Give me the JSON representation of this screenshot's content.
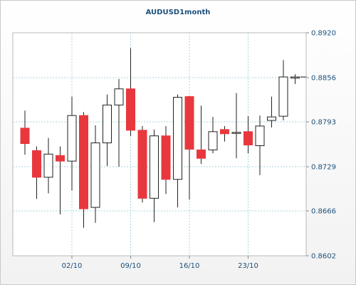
{
  "chart_data": {
    "type": "candlestick",
    "title": "AUDUSD1month",
    "ylim": [
      0.8602,
      0.892
    ],
    "y_ticks": [
      "0.8920",
      "0.8856",
      "0.8793",
      "0.8729",
      "0.8666",
      "0.8602"
    ],
    "x_ticks": [
      {
        "label": "02/10",
        "index": 4
      },
      {
        "label": "09/10",
        "index": 9
      },
      {
        "label": "16/10",
        "index": 14
      },
      {
        "label": "23/10",
        "index": 19
      }
    ],
    "colors": {
      "up": "#ffffff",
      "down": "#e8383d",
      "wick": "#222222",
      "grid": "#a8d4dc",
      "axis": "#1a4f7a"
    },
    "current_price": 0.8857,
    "candles": [
      {
        "open": 0.8784,
        "high": 0.8809,
        "low": 0.8746,
        "close": 0.8762
      },
      {
        "open": 0.8752,
        "high": 0.8758,
        "low": 0.8683,
        "close": 0.8714
      },
      {
        "open": 0.8714,
        "high": 0.877,
        "low": 0.8691,
        "close": 0.8747
      },
      {
        "open": 0.8745,
        "high": 0.8758,
        "low": 0.8661,
        "close": 0.8737
      },
      {
        "open": 0.8737,
        "high": 0.8829,
        "low": 0.8695,
        "close": 0.8802
      },
      {
        "open": 0.8802,
        "high": 0.8807,
        "low": 0.8642,
        "close": 0.8669
      },
      {
        "open": 0.8671,
        "high": 0.8788,
        "low": 0.8649,
        "close": 0.8763
      },
      {
        "open": 0.8763,
        "high": 0.8832,
        "low": 0.873,
        "close": 0.8817
      },
      {
        "open": 0.8817,
        "high": 0.8854,
        "low": 0.8729,
        "close": 0.884
      },
      {
        "open": 0.884,
        "high": 0.8898,
        "low": 0.8773,
        "close": 0.8781
      },
      {
        "open": 0.8781,
        "high": 0.8787,
        "low": 0.8678,
        "close": 0.8684
      },
      {
        "open": 0.8684,
        "high": 0.8782,
        "low": 0.865,
        "close": 0.8773
      },
      {
        "open": 0.8773,
        "high": 0.8787,
        "low": 0.869,
        "close": 0.8711
      },
      {
        "open": 0.8711,
        "high": 0.8832,
        "low": 0.8671,
        "close": 0.8828
      },
      {
        "open": 0.8829,
        "high": 0.883,
        "low": 0.8682,
        "close": 0.8754
      },
      {
        "open": 0.8753,
        "high": 0.8816,
        "low": 0.8733,
        "close": 0.8741
      },
      {
        "open": 0.8753,
        "high": 0.88,
        "low": 0.8748,
        "close": 0.8779
      },
      {
        "open": 0.8782,
        "high": 0.8787,
        "low": 0.8765,
        "close": 0.8776
      },
      {
        "open": 0.8778,
        "high": 0.8834,
        "low": 0.8741,
        "close": 0.8778
      },
      {
        "open": 0.8779,
        "high": 0.8801,
        "low": 0.8748,
        "close": 0.876
      },
      {
        "open": 0.8759,
        "high": 0.8802,
        "low": 0.8717,
        "close": 0.8787
      },
      {
        "open": 0.8795,
        "high": 0.8829,
        "low": 0.8785,
        "close": 0.88
      },
      {
        "open": 0.8801,
        "high": 0.8881,
        "low": 0.8795,
        "close": 0.8857
      },
      {
        "open": 0.8857,
        "high": 0.8861,
        "low": 0.8847,
        "close": 0.8857
      }
    ]
  }
}
